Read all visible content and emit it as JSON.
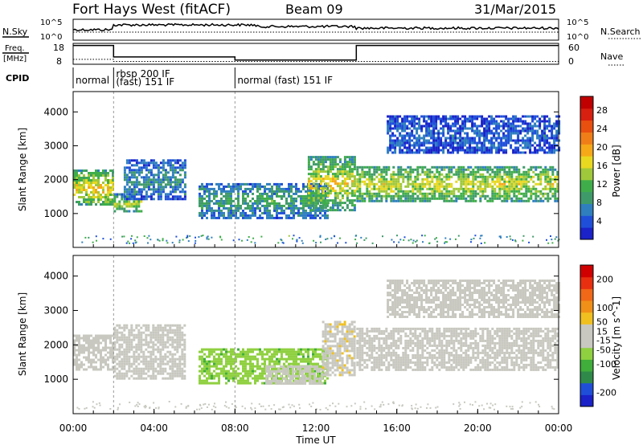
{
  "header": {
    "title": "Fort Hays West (fitACF)",
    "beam": "Beam 09",
    "date": "31/Mar/2015"
  },
  "strip_labels": {
    "nsky": "N.Sky",
    "nsearch": "N.Search",
    "freq_line1": "Freq.",
    "freq_line2": "[MHz]",
    "nave": "Nave",
    "cpid": "CPID",
    "nsky_ticks": [
      "10^5",
      "10^0"
    ],
    "nsearch_ticks": [
      "10^5",
      "10^0"
    ],
    "freq_ticks": [
      "18",
      "8"
    ],
    "nave_ticks": [
      "60",
      "0"
    ]
  },
  "cpid_segments": [
    {
      "label1": "normal",
      "label2": "",
      "start": 0,
      "end": 2
    },
    {
      "label1": "rbsp 200 IF",
      "label2": "(fast) 151 IF",
      "start": 2,
      "end": 8
    },
    {
      "label1": "normal (fast) 151 IF",
      "label2": "",
      "start": 8,
      "end": 24
    }
  ],
  "freq_trace": {
    "x": [
      0,
      2,
      2,
      8,
      8,
      14,
      14,
      24
    ],
    "y": [
      17,
      17,
      11.5,
      11.5,
      10,
      10,
      17,
      17
    ]
  },
  "nave_trace": {
    "x": [
      0,
      2,
      2,
      24
    ],
    "y": [
      14,
      14,
      8,
      8
    ]
  },
  "chart_data": [
    {
      "type": "heatmap",
      "title": "Power",
      "xlabel": "",
      "ylabel": "Slant Range [km]",
      "xlim": [
        0,
        24
      ],
      "ylim": [
        0,
        4600
      ],
      "yticks": [
        "1000",
        "2000",
        "3000",
        "4000"
      ],
      "yticks_values": [
        1000,
        2000,
        3000,
        4000
      ],
      "colorbar": {
        "label": "Power [dB]",
        "ticks": [
          "4",
          "8",
          "12",
          "16",
          "20",
          "24",
          "28"
        ],
        "tick_values": [
          4,
          8,
          12,
          16,
          20,
          24,
          28
        ],
        "range": [
          0,
          31
        ],
        "colors": [
          "#1a22c8",
          "#1f4fd9",
          "#2f7fbf",
          "#3f9a6a",
          "#3fae4a",
          "#9fc83a",
          "#e8d820",
          "#f5a818",
          "#f07e18",
          "#e85010",
          "#d82010",
          "#c00000"
        ]
      },
      "regions": [
        {
          "t0": 0.0,
          "t1": 2.0,
          "r0": 1250,
          "r1": 2300,
          "core": 18,
          "edge": 9
        },
        {
          "t0": 2.0,
          "t1": 3.4,
          "r0": 1050,
          "r1": 1600,
          "core": 16,
          "edge": 7
        },
        {
          "t0": 2.5,
          "t1": 5.5,
          "r0": 1400,
          "r1": 2600,
          "core": 8,
          "edge": 4
        },
        {
          "t0": 6.2,
          "t1": 12.6,
          "r0": 900,
          "r1": 1900,
          "core": 10,
          "edge": 5
        },
        {
          "t0": 11.6,
          "t1": 13.9,
          "r0": 1100,
          "r1": 2700,
          "core": 17,
          "edge": 8
        },
        {
          "t0": 14.0,
          "t1": 24.0,
          "r0": 1400,
          "r1": 2400,
          "core": 16,
          "edge": 9
        },
        {
          "t0": 15.5,
          "t1": 24.0,
          "r0": 2800,
          "r1": 3900,
          "core": 5,
          "edge": 3
        }
      ]
    },
    {
      "type": "heatmap",
      "title": "Velocity",
      "xlabel": "Time UT",
      "ylabel": "Slant Range [km]",
      "xlim": [
        0,
        24
      ],
      "ylim": [
        0,
        4600
      ],
      "xticks": [
        "00:00",
        "04:00",
        "08:00",
        "12:00",
        "16:00",
        "20:00",
        "00:00"
      ],
      "xticks_values": [
        0,
        4,
        8,
        12,
        16,
        20,
        24
      ],
      "yticks": [
        "1000",
        "2000",
        "3000",
        "4000"
      ],
      "yticks_values": [
        1000,
        2000,
        3000,
        4000
      ],
      "colorbar": {
        "label": "Velocity [m s^-1]",
        "ticks": [
          "200",
          "100",
          "50",
          "15",
          "-15",
          "-50",
          "-100",
          "-200"
        ],
        "tick_values": [
          200,
          100,
          50,
          15,
          -15,
          -50,
          -100,
          -200
        ],
        "range": [
          -250,
          250
        ],
        "colors": [
          "#1a22c8",
          "#1f4fd9",
          "#2f8a4a",
          "#3fae3a",
          "#8fd040",
          "#c8c8c0",
          "#c8c8c0",
          "#f0c020",
          "#f09018",
          "#f06818",
          "#e83010",
          "#d00000"
        ]
      },
      "regions": [
        {
          "t0": 0.0,
          "t1": 2.0,
          "r0": 1250,
          "r1": 2300,
          "vel": 0
        },
        {
          "t0": 2.0,
          "t1": 5.5,
          "r0": 1050,
          "r1": 2600,
          "vel": 0
        },
        {
          "t0": 6.2,
          "t1": 12.6,
          "r0": 900,
          "r1": 1900,
          "vel": -70
        },
        {
          "t0": 9.5,
          "t1": 12.3,
          "r0": 900,
          "r1": 1400,
          "vel": 20
        },
        {
          "t0": 12.3,
          "t1": 13.9,
          "r0": 1100,
          "r1": 2700,
          "vel": 30
        },
        {
          "t0": 14.0,
          "t1": 24.0,
          "r0": 1300,
          "r1": 2500,
          "vel": 0
        },
        {
          "t0": 15.5,
          "t1": 24.0,
          "r0": 2800,
          "r1": 3900,
          "vel": 0
        }
      ]
    }
  ]
}
